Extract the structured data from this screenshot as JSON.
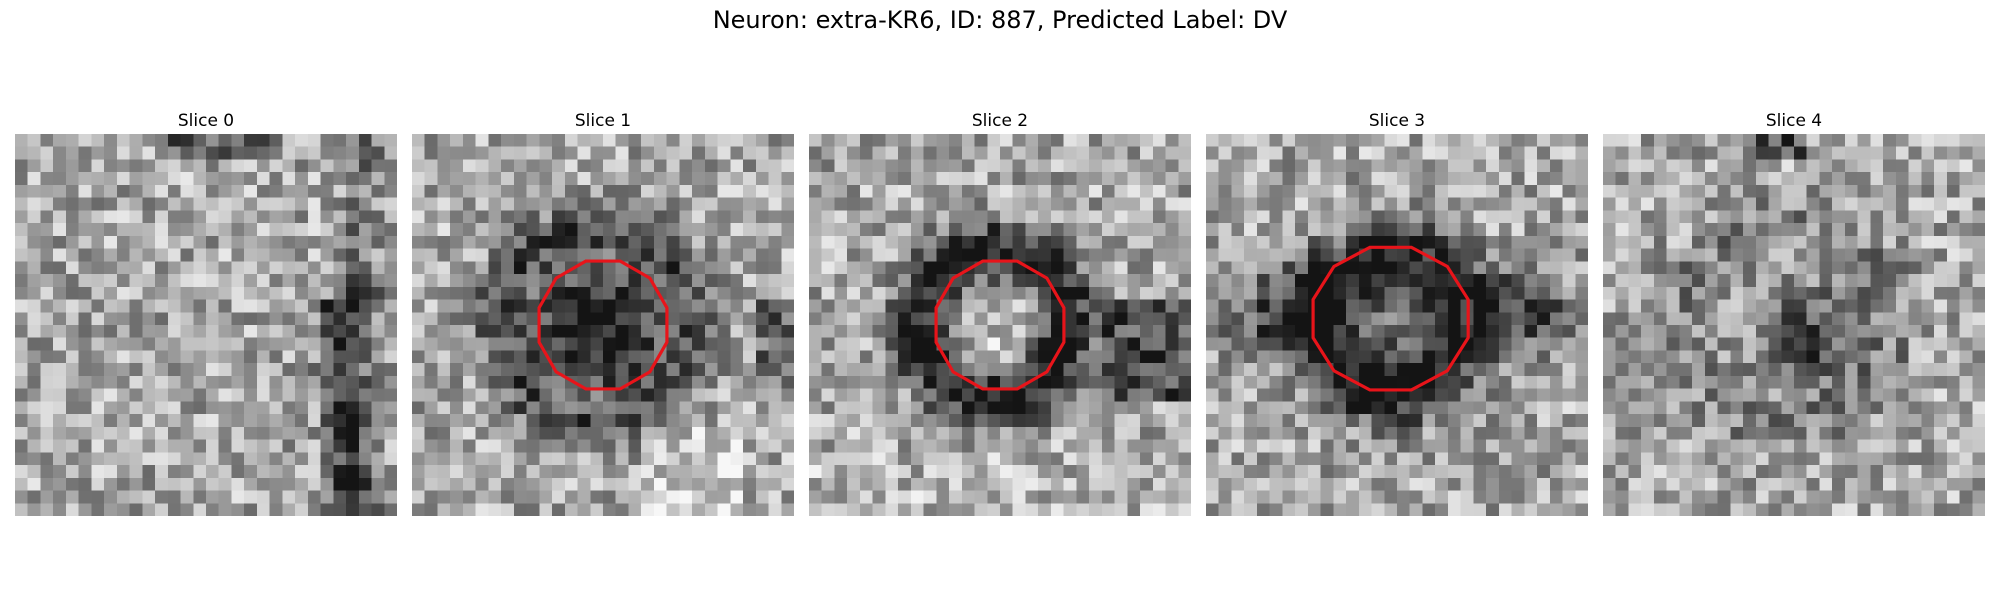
{
  "figure": {
    "title": "Neuron: extra-KR6, ID: 887, Predicted Label: DV"
  },
  "colors": {
    "contour": "#e8141a",
    "background": "#ffffff"
  },
  "panels": [
    {
      "title": "Slice 0",
      "has_contour": false
    },
    {
      "title": "Slice 1",
      "has_contour": true
    },
    {
      "title": "Slice 2",
      "has_contour": true
    },
    {
      "title": "Slice 3",
      "has_contour": true
    },
    {
      "title": "Slice 4",
      "has_contour": false
    }
  ]
}
